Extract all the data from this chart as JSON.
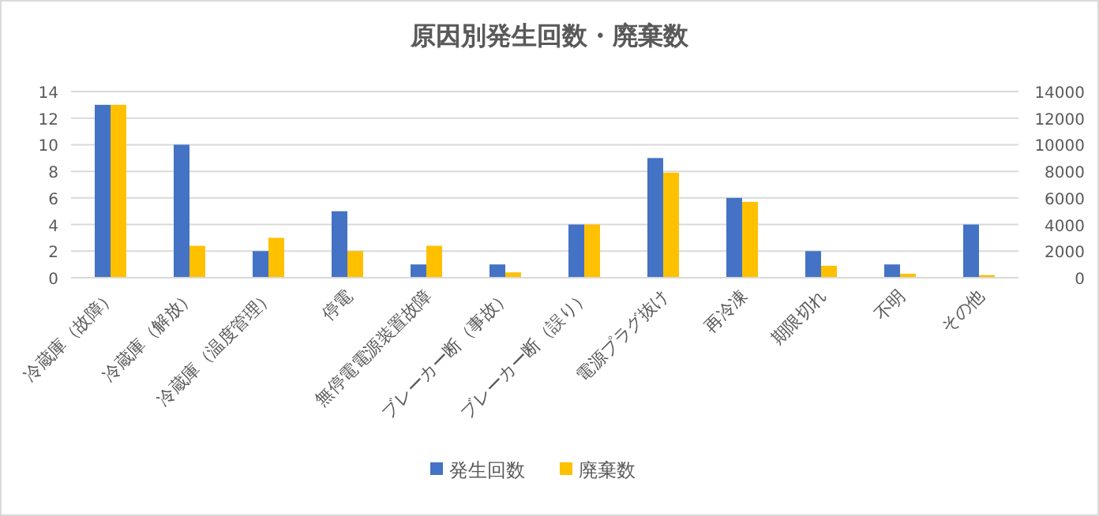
{
  "chart_data": {
    "type": "bar",
    "title": "原因別発生回数・廃棄数",
    "categories": [
      "冷蔵庫（故障）",
      "冷蔵庫（解放）",
      "冷蔵庫（温度管理）",
      "停電",
      "無停電電源装置故障",
      "ブレーカー断（事故）",
      "ブレーカー断（誤り）",
      "電源プラグ抜け",
      "再冷凍",
      "期限切れ",
      "不明",
      "その他"
    ],
    "series": [
      {
        "name": "発生回数",
        "color": "#4472c4",
        "values": [
          13,
          10,
          2,
          5,
          1,
          1,
          4,
          9,
          6,
          2,
          1,
          4
        ]
      },
      {
        "name": "廃棄数",
        "color": "#ffc000",
        "axis": "y2",
        "values": [
          13000,
          2400,
          3000,
          2000,
          2400,
          400,
          4000,
          7900,
          5700,
          900,
          300,
          200
        ]
      }
    ],
    "ylim": [
      0,
      14
    ],
    "yticks": [
      0,
      2,
      4,
      6,
      8,
      10,
      12,
      14
    ],
    "y2lim": [
      0,
      14000
    ],
    "y2ticks": [
      0,
      2000,
      4000,
      6000,
      8000,
      10000,
      12000,
      14000
    ],
    "grid": "y",
    "legend": "bottom"
  }
}
